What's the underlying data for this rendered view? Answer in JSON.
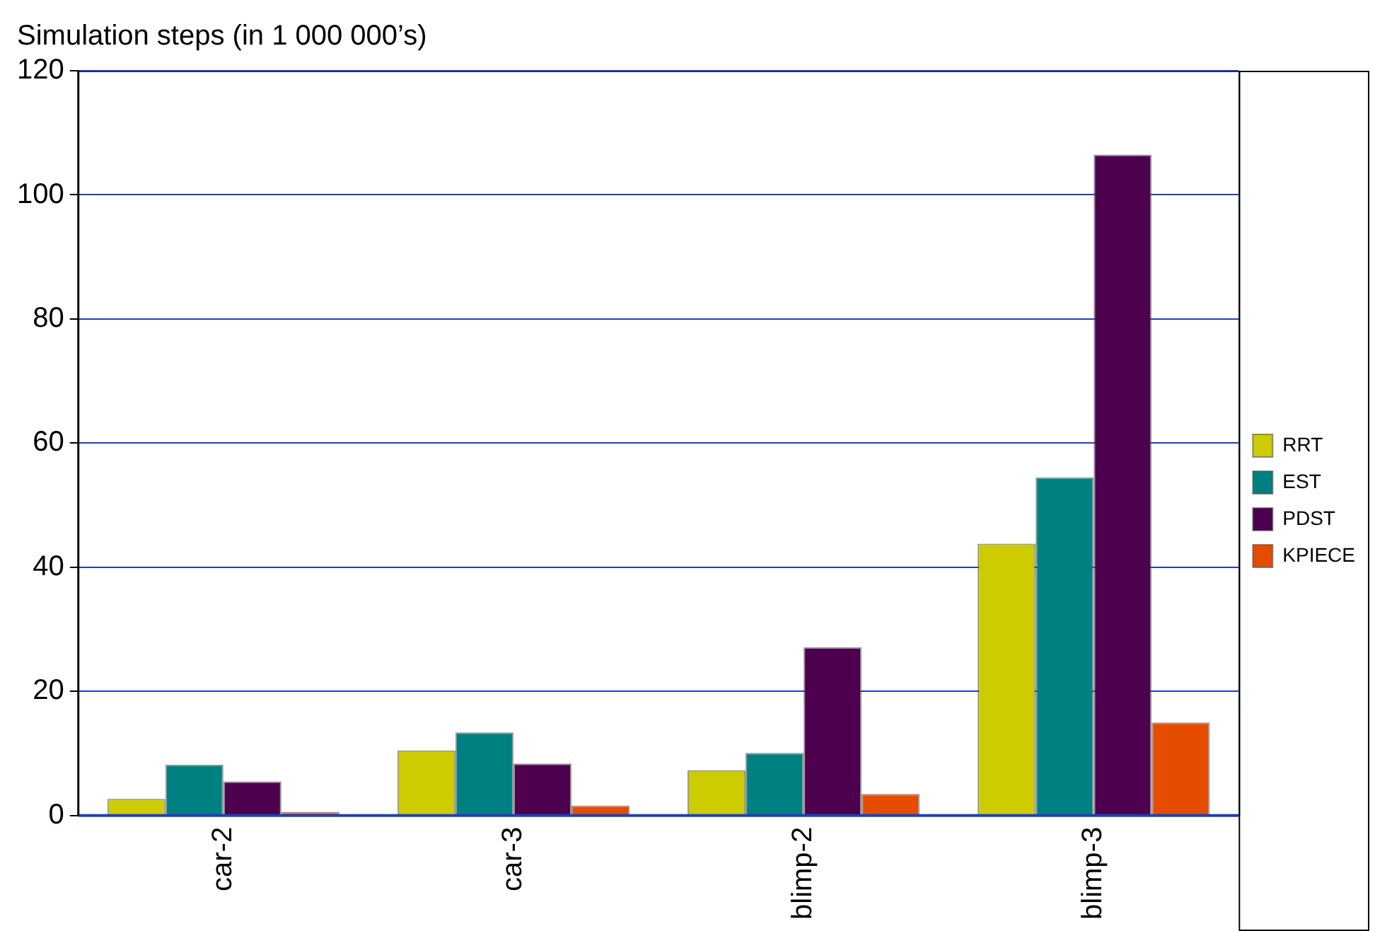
{
  "chart_data": {
    "type": "bar",
    "ylabel": "Simulation steps (in 1 000 000’s)",
    "categories": [
      "car-2",
      "car-3",
      "blimp-2",
      "blimp-3"
    ],
    "series": [
      {
        "name": "RRT",
        "color": "#cccc00",
        "values": [
          2.7,
          10.5,
          7.3,
          43.8
        ]
      },
      {
        "name": "EST",
        "color": "#008080",
        "values": [
          8.2,
          13.4,
          10.1,
          54.5
        ]
      },
      {
        "name": "PDST",
        "color": "#4d004d",
        "values": [
          5.5,
          8.4,
          27.1,
          106.5
        ]
      },
      {
        "name": "KPIECE",
        "color": "#e64c00",
        "values": [
          0.6,
          1.6,
          3.5,
          15.0
        ]
      }
    ],
    "ylim": [
      0,
      120
    ],
    "yticks": [
      0,
      20,
      40,
      60,
      80,
      100,
      120
    ],
    "grid": "y",
    "legend": "right"
  }
}
